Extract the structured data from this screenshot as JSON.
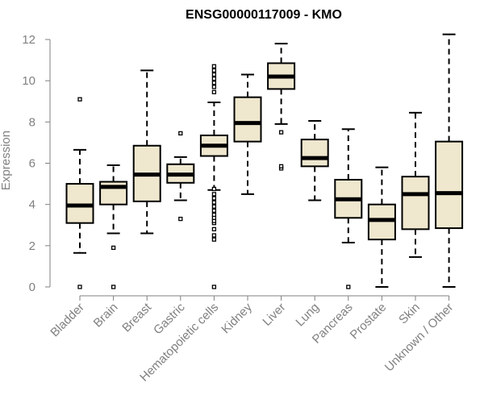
{
  "chart_data": {
    "type": "boxplot",
    "title": "ENSG00000117009 - KMO",
    "ylabel": "Expression",
    "xlabel": "",
    "ylim": [
      0,
      12.5
    ],
    "yticks": [
      0,
      2,
      4,
      6,
      8,
      10,
      12
    ],
    "categories": [
      "Bladder",
      "Brain",
      "Breast",
      "Gastric",
      "Hematopoietic cells",
      "Kidney",
      "Liver",
      "Lung",
      "Pancreas",
      "Prostate",
      "Skin",
      "Unknown / Other"
    ],
    "boxes": [
      {
        "name": "Bladder",
        "whisker_low": 1.65,
        "q1": 3.1,
        "median": 3.95,
        "q3": 5.0,
        "whisker_high": 6.65,
        "outliers": [
          0.0,
          9.1
        ]
      },
      {
        "name": "Brain",
        "whisker_low": 2.6,
        "q1": 4.0,
        "median": 4.85,
        "q3": 5.1,
        "whisker_high": 5.9,
        "outliers": [
          0.0,
          1.9
        ]
      },
      {
        "name": "Breast",
        "whisker_low": 2.6,
        "q1": 4.15,
        "median": 5.45,
        "q3": 6.85,
        "whisker_high": 10.5,
        "outliers": []
      },
      {
        "name": "Gastric",
        "whisker_low": 4.2,
        "q1": 5.05,
        "median": 5.45,
        "q3": 5.95,
        "whisker_high": 6.3,
        "outliers": [
          3.3,
          7.45
        ]
      },
      {
        "name": "Hematopoietic cells",
        "whisker_low": 4.7,
        "q1": 6.35,
        "median": 6.85,
        "q3": 7.35,
        "whisker_high": 8.95,
        "outliers": [
          0.0,
          2.3,
          2.5,
          2.8,
          3.1,
          3.2,
          3.35,
          3.5,
          3.7,
          3.9,
          4.1,
          4.3,
          4.5,
          4.75,
          9.45,
          9.7,
          9.9,
          10.1,
          10.3,
          10.5,
          10.7
        ]
      },
      {
        "name": "Kidney",
        "whisker_low": 4.5,
        "q1": 7.05,
        "median": 7.95,
        "q3": 9.2,
        "whisker_high": 10.3,
        "outliers": []
      },
      {
        "name": "Liver",
        "whisker_low": 7.9,
        "q1": 9.6,
        "median": 10.2,
        "q3": 10.85,
        "whisker_high": 11.8,
        "outliers": [
          5.75,
          5.85,
          7.5
        ]
      },
      {
        "name": "Lung",
        "whisker_low": 4.2,
        "q1": 5.85,
        "median": 6.25,
        "q3": 7.15,
        "whisker_high": 8.05,
        "outliers": []
      },
      {
        "name": "Pancreas",
        "whisker_low": 2.15,
        "q1": 3.35,
        "median": 4.25,
        "q3": 5.2,
        "whisker_high": 7.65,
        "outliers": [
          0.0
        ]
      },
      {
        "name": "Prostate",
        "whisker_low": 0.0,
        "q1": 2.3,
        "median": 3.25,
        "q3": 4.0,
        "whisker_high": 5.8,
        "outliers": []
      },
      {
        "name": "Skin",
        "whisker_low": 1.45,
        "q1": 2.8,
        "median": 4.5,
        "q3": 5.35,
        "whisker_high": 8.45,
        "outliers": []
      },
      {
        "name": "Unknown / Other",
        "whisker_low": 0.0,
        "q1": 2.85,
        "median": 4.55,
        "q3": 7.05,
        "whisker_high": 12.25,
        "outliers": []
      }
    ],
    "colors": {
      "box_fill": "#efe8cf",
      "stroke": "#000000",
      "axis_text": "#808080",
      "axis_line": "#808080"
    },
    "grid": false,
    "legend": "none"
  }
}
